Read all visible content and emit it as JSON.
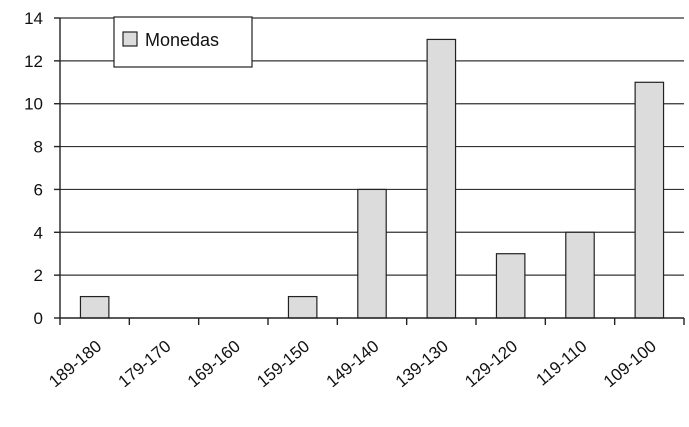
{
  "chart_data": {
    "type": "bar",
    "categories": [
      "189-180",
      "179-170",
      "169-160",
      "159-150",
      "149-140",
      "139-130",
      "129-120",
      "119-110",
      "109-100"
    ],
    "series": [
      {
        "name": "Monedas",
        "values": [
          1,
          0,
          0,
          1,
          6,
          13,
          3,
          4,
          11
        ]
      }
    ],
    "ylim": [
      0,
      14
    ],
    "yticks": [
      0,
      2,
      4,
      6,
      8,
      10,
      12,
      14
    ],
    "grid": true,
    "legend_position": "top-left",
    "bar_color": "#dcdcdc"
  }
}
